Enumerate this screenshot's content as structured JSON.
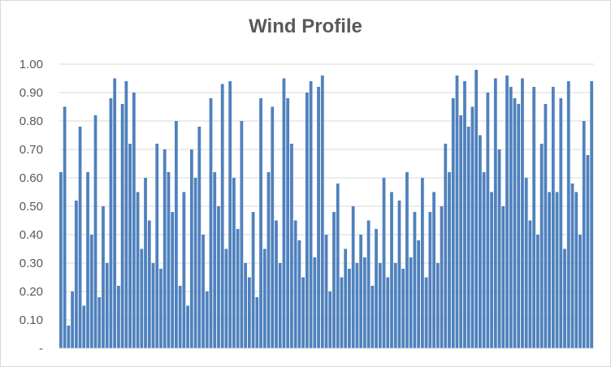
{
  "chart_data": {
    "type": "bar",
    "title": "Wind Profile",
    "xlabel": "",
    "ylabel": "",
    "ylim": [
      0,
      1.0
    ],
    "y_ticks": [
      {
        "value": 0.0,
        "label": "-"
      },
      {
        "value": 0.1,
        "label": "0.10"
      },
      {
        "value": 0.2,
        "label": "0.20"
      },
      {
        "value": 0.3,
        "label": "0.30"
      },
      {
        "value": 0.4,
        "label": "0.40"
      },
      {
        "value": 0.5,
        "label": "0.50"
      },
      {
        "value": 0.6,
        "label": "0.60"
      },
      {
        "value": 0.7,
        "label": "0.70"
      },
      {
        "value": 0.8,
        "label": "0.80"
      },
      {
        "value": 0.9,
        "label": "0.90"
      },
      {
        "value": 1.0,
        "label": "1.00"
      }
    ],
    "grid": true,
    "legend": "none",
    "color": "#4f81bd",
    "values": [
      0.62,
      0.85,
      0.08,
      0.2,
      0.52,
      0.78,
      0.15,
      0.62,
      0.4,
      0.82,
      0.18,
      0.5,
      0.3,
      0.88,
      0.95,
      0.22,
      0.86,
      0.94,
      0.72,
      0.9,
      0.55,
      0.35,
      0.6,
      0.45,
      0.3,
      0.72,
      0.28,
      0.7,
      0.62,
      0.48,
      0.8,
      0.22,
      0.55,
      0.15,
      0.7,
      0.6,
      0.78,
      0.4,
      0.2,
      0.88,
      0.62,
      0.5,
      0.93,
      0.35,
      0.94,
      0.6,
      0.42,
      0.8,
      0.3,
      0.25,
      0.48,
      0.18,
      0.88,
      0.35,
      0.62,
      0.85,
      0.45,
      0.3,
      0.95,
      0.88,
      0.72,
      0.45,
      0.38,
      0.25,
      0.9,
      0.94,
      0.32,
      0.92,
      0.96,
      0.4,
      0.2,
      0.48,
      0.58,
      0.25,
      0.35,
      0.28,
      0.5,
      0.3,
      0.4,
      0.32,
      0.45,
      0.22,
      0.42,
      0.3,
      0.6,
      0.25,
      0.55,
      0.3,
      0.52,
      0.28,
      0.62,
      0.32,
      0.48,
      0.38,
      0.6,
      0.25,
      0.48,
      0.55,
      0.3,
      0.5,
      0.72,
      0.62,
      0.88,
      0.96,
      0.82,
      0.94,
      0.78,
      0.85,
      0.98,
      0.75,
      0.62,
      0.9,
      0.55,
      0.95,
      0.7,
      0.5,
      0.96,
      0.92,
      0.88,
      0.86,
      0.95,
      0.6,
      0.45,
      0.92,
      0.4,
      0.72,
      0.86,
      0.55,
      0.92,
      0.55,
      0.88,
      0.35,
      0.94,
      0.58,
      0.55,
      0.4,
      0.8,
      0.68,
      0.94
    ]
  }
}
